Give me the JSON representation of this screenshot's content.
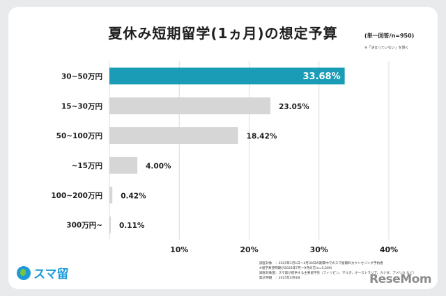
{
  "chart_data": {
    "type": "bar",
    "orientation": "horizontal",
    "title": "夏休み短期留学(1ヵ月)の想定予算",
    "note": "(単一回答/n=950)",
    "subnote": "※「決まっていない」を除く",
    "categories": [
      "30~50万円",
      "15~30万円",
      "50~100万円",
      "~15万円",
      "100~200万円",
      "300万円~"
    ],
    "values": [
      33.68,
      23.05,
      18.42,
      4.0,
      0.42,
      0.11
    ],
    "value_labels": [
      "33.68%",
      "23.05%",
      "18.42%",
      "4.00%",
      "0.42%",
      "0.11%"
    ],
    "xlim": [
      0,
      40
    ],
    "xticks": [
      10,
      20,
      30,
      40
    ],
    "xtick_labels": [
      "10%",
      "20%",
      "30%",
      "40%"
    ],
    "grid": true,
    "highlight_index": 0,
    "colors": {
      "highlight": "#1a9cb6",
      "default": "#d6d6d6",
      "grid": "#dcdcdc"
    }
  },
  "footer": {
    "lines": [
      "調査対象　：2025年1月1日〜4月30日の期間中でのスマ留無料カウンセリング予約者",
      "※留学希望時期が2025年7月〜9月の方(n=5,569)",
      "調査対象国：スマ留が提供する主要留学先（フィリピン、マルタ、オーストラリア、カナダ、アメリカ など）",
      "集計時期　：2025年4月4日"
    ]
  },
  "logo": {
    "text": "スマ留",
    "icon": "globe-icon"
  },
  "watermark": "ReseMom"
}
